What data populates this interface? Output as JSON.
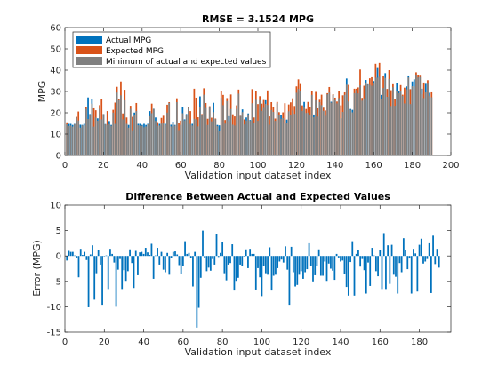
{
  "colors": {
    "actual": "#0072BD",
    "expected": "#D95319",
    "minimum": "#808080",
    "error": "#0072BD"
  },
  "chart_data": [
    {
      "type": "bar",
      "title": "RMSE = 3.1524 MPG",
      "xlabel": "Validation input dataset index",
      "ylabel": "MPG",
      "xlim": [
        0,
        200
      ],
      "ylim": [
        0,
        60
      ],
      "xticks": [
        "0",
        "20",
        "40",
        "60",
        "80",
        "100",
        "120",
        "140",
        "160",
        "180",
        "200"
      ],
      "yticks": [
        "0",
        "10",
        "20",
        "30",
        "40",
        "50",
        "60"
      ],
      "legend": {
        "position": "top-left",
        "entries": [
          "Actual MPG",
          "Expected MPG",
          "Minimum of actual and expected values"
        ]
      },
      "series": [
        {
          "name": "Actual MPG",
          "values": [
            14.6,
            14.8,
            14.8,
            14.3,
            14.8,
            17.8,
            16.4,
            14.4,
            14.3,
            14.8,
            21.9,
            27.2,
            19.4,
            26.4,
            13.5,
            17.8,
            17.4,
            21.9,
            16.9,
            19.4,
            14.7,
            14.3,
            16.1,
            14.3,
            20.1,
            14.8,
            29.5,
            25.9,
            28.2,
            16.9,
            25.9,
            14.8,
            14.3,
            21.9,
            11.8,
            20.1,
            20.8,
            14.8,
            14.8,
            14.3,
            14.8,
            14.3,
            14.8,
            20.8,
            19.8,
            21.9,
            17.8,
            13.9,
            14.8,
            14.9,
            15.4,
            14.8,
            20.1,
            24.6,
            14.4,
            15.8,
            14.3,
            25.0,
            11.9,
            14.3,
            22.7,
            16.9,
            19.4,
            22.4,
            14.8,
            14.8,
            17.2,
            16.9,
            13.6,
            27.7,
            19.0,
            28.5,
            22.3,
            14.3,
            22.5,
            16.0,
            24.7,
            17.1,
            14.3,
            14.1,
            27.0,
            23.6,
            14.9,
            25.5,
            18.4,
            21.8,
            14.4,
            14.0,
            21.8,
            29.0,
            18.5,
            21.6,
            14.5,
            17.8,
            19.7,
            16.6,
            24.5,
            15.4,
            26.1,
            16.2,
            25.9,
            20.9,
            22.3,
            25.9,
            23.7,
            14.4,
            21.3,
            20.4,
            16.2,
            24.4,
            19.0,
            19.1,
            17.5,
            14.9,
            16.8,
            20.7,
            18.9,
            21.1,
            19.5,
            29.4,
            31.2,
            30.3,
            20.9,
            25.1,
            19.9,
            20.1,
            19.0,
            28.4,
            19.2,
            25.9,
            18.2,
            25.0,
            23.6,
            20.9,
            18.6,
            28.7,
            29.5,
            25.2,
            28.4,
            26.0,
            24.4,
            26.9,
            17.4,
            20.4,
            28.4,
            36.1,
            25.3,
            21.8,
            21.4,
            29.2,
            30.7,
            29.1,
            32.9,
            25.7,
            26.8,
            35.4,
            33.4,
            33.2,
            32.7,
            34.9,
            36.5,
            41.0,
            36.9,
            28.4,
            31.6,
            38.6,
            27.5,
            35.9,
            23.2,
            32.0,
            23.3,
            33.8,
            30.4,
            30.4,
            28.0,
            24.4,
            32.4,
            37.1,
            24.1,
            34.7,
            35.7,
            37.5,
            36.6,
            36.8,
            31.3,
            26.9,
            33.6,
            33.7,
            29.4,
            27.3
          ],
          "max": [
            15.5,
            14.8,
            14.8,
            14.3,
            14.8,
            18.1,
            20.6,
            14.4,
            14.3,
            14.8,
            22.7,
            27.2,
            19.4,
            26.4,
            22.1,
            21.2,
            17.4,
            23.6,
            26.5,
            19.4,
            14.7,
            20.8,
            16.1,
            14.3,
            21.4,
            24.8,
            32.2,
            26.5,
            34.7,
            19.7,
            30.8,
            17.8,
            14.3,
            23.3,
            18.1,
            20.1,
            24.6,
            14.8,
            14.8,
            14.3,
            14.8,
            14.3,
            14.8,
            20.8,
            24.3,
            21.9,
            17.8,
            15.6,
            14.8,
            17.6,
            18.6,
            14.8,
            23.8,
            25.0,
            14.4,
            15.8,
            14.3,
            26.8,
            15.4,
            16.3,
            22.7,
            16.9,
            19.4,
            22.8,
            20.8,
            14.8,
            31.3,
            27.1,
            17.9,
            27.7,
            19.4,
            31.5,
            24.6,
            17.2,
            23.1,
            17.7,
            24.7,
            17.3,
            14.3,
            14.1,
            30.4,
            28.4,
            16.6,
            26.9,
            18.4,
            28.6,
            19.3,
            18.3,
            23.5,
            30.9,
            18.6,
            21.6,
            16.9,
            17.8,
            19.7,
            16.6,
            31.1,
            17.8,
            30.3,
            24.1,
            27.8,
            24.3,
            26.0,
            25.9,
            30.5,
            18.3,
            25.0,
            22.8,
            17.3,
            25.1,
            20.3,
            19.1,
            20.2,
            24.5,
            16.8,
            23.9,
            24.9,
            26.8,
            23.2,
            32.4,
            35.7,
            33.5,
            23.5,
            25.1,
            21.8,
            25.1,
            22.8,
            30.4,
            19.2,
            29.8,
            22.1,
            26.1,
            28.5,
            22.4,
            21.1,
            29.2,
            32.1,
            25.2,
            28.7,
            27.1,
            25.3,
            30.4,
            23.5,
            28.2,
            29.6,
            36.1,
            33.1,
            21.8,
            21.4,
            31.3,
            31.3,
            31.9,
            40.3,
            27.0,
            32.7,
            35.4,
            33.4,
            36.2,
            36.7,
            34.9,
            43.0,
            41.0,
            43.4,
            28.4,
            37.1,
            38.6,
            31.2,
            40.0,
            30.6,
            33.4,
            26.5,
            33.8,
            30.4,
            33.0,
            28.5,
            31.8,
            32.4,
            37.1,
            31.1,
            34.7,
            35.7,
            39.0,
            37.7,
            37.4,
            31.3,
            34.2,
            33.6,
            35.3,
            29.4,
            29.6
          ]
        },
        {
          "name": "Expected MPG",
          "values": [
            15.5,
            13.8,
            14.0,
            13.5,
            14.7,
            18.1,
            20.6,
            13.0,
            14.1,
            14.0,
            22.7,
            17.1,
            19.1,
            24.3,
            22.1,
            21.2,
            16.3,
            23.6,
            26.5,
            19.4,
            14.6,
            20.8,
            14.7,
            13.9,
            21.4,
            24.8,
            32.2,
            26.5,
            34.7,
            19.7,
            30.8,
            17.8,
            13.0,
            23.3,
            18.1,
            19.1,
            24.6,
            14.1,
            14.0,
            13.9,
            13.2,
            13.6,
            14.6,
            18.4,
            24.3,
            21.8,
            16.2,
            15.6,
            14.0,
            17.6,
            18.6,
            14.2,
            23.8,
            25.0,
            13.6,
            14.9,
            14.0,
            26.8,
            15.4,
            16.3,
            19.8,
            16.5,
            18.8,
            22.8,
            20.8,
            14.0,
            31.3,
            27.1,
            17.9,
            22.7,
            19.4,
            31.5,
            24.6,
            17.2,
            23.1,
            17.7,
            20.3,
            17.3,
            13.7,
            11.3,
            30.4,
            28.4,
            16.6,
            26.9,
            16.1,
            28.6,
            19.3,
            18.3,
            23.5,
            30.9,
            18.6,
            20.3,
            16.9,
            16.4,
            19.3,
            16.2,
            31.1,
            17.8,
            30.3,
            24.1,
            27.8,
            24.3,
            26.0,
            24.2,
            30.5,
            18.3,
            25.0,
            22.8,
            17.3,
            25.1,
            20.3,
            17.2,
            20.2,
            24.5,
            15.0,
            23.9,
            24.9,
            26.8,
            23.2,
            32.4,
            35.7,
            33.5,
            23.5,
            22.6,
            21.8,
            25.1,
            22.8,
            30.4,
            17.9,
            29.8,
            22.1,
            26.1,
            28.5,
            22.4,
            21.1,
            29.2,
            32.1,
            24.8,
            28.7,
            27.1,
            25.3,
            30.4,
            23.5,
            28.2,
            29.6,
            33.2,
            33.1,
            21.4,
            20.2,
            31.3,
            31.3,
            31.9,
            40.3,
            27.0,
            32.7,
            33.8,
            33.3,
            36.2,
            36.7,
            33.8,
            43.0,
            36.5,
            43.4,
            26.3,
            37.1,
            36.4,
            31.2,
            40.0,
            30.6,
            33.4,
            26.5,
            30.3,
            29.2,
            33.0,
            28.5,
            31.8,
            31.0,
            36.6,
            31.1,
            32.5,
            32.3,
            39.0,
            37.7,
            37.4,
            28.8,
            34.2,
            29.6,
            35.3,
            28.0,
            29.6
          ]
        }
      ]
    },
    {
      "type": "bar",
      "title": "Difference Between Actual and Expected Values",
      "xlabel": "Validation input dataset index",
      "ylabel": "Error (MPG)",
      "xlim": [
        0,
        196
      ],
      "ylim": [
        -15,
        10
      ],
      "xticks": [
        "0",
        "20",
        "40",
        "60",
        "80",
        "100",
        "120",
        "140",
        "160",
        "180"
      ],
      "yticks": [
        "-15",
        "-10",
        "-5",
        "0",
        "5",
        "10"
      ],
      "series": [
        {
          "name": "Error",
          "values": [
            -0.9,
            1.0,
            0.8,
            0.8,
            0.1,
            -0.3,
            -4.2,
            1.4,
            0.2,
            0.8,
            -0.8,
            -10.1,
            0.3,
            2.1,
            -8.6,
            -3.4,
            1.1,
            -1.7,
            -9.6,
            0.0,
            0.1,
            -6.5,
            1.4,
            0.4,
            -1.3,
            -10.0,
            -2.7,
            -0.6,
            -6.5,
            -2.8,
            -4.9,
            -3.0,
            1.3,
            -1.4,
            -6.3,
            1.0,
            -3.8,
            0.7,
            0.8,
            0.4,
            1.6,
            0.7,
            0.2,
            2.4,
            -4.5,
            0.1,
            1.6,
            -1.7,
            0.8,
            -2.7,
            -3.2,
            0.6,
            -3.7,
            -0.4,
            0.8,
            0.9,
            0.3,
            -1.8,
            -3.5,
            -2.0,
            2.9,
            0.4,
            0.6,
            -0.4,
            -6.0,
            0.8,
            -14.1,
            -10.2,
            -4.3,
            5.0,
            -0.4,
            -3.0,
            -2.3,
            -2.9,
            -0.6,
            -1.7,
            4.4,
            -0.2,
            0.6,
            2.8,
            -3.4,
            -4.8,
            -1.7,
            -1.4,
            2.3,
            -6.8,
            -4.9,
            -4.3,
            -1.7,
            -1.9,
            -0.1,
            1.3,
            -2.4,
            1.4,
            0.4,
            0.4,
            -6.6,
            -2.4,
            -4.2,
            -7.9,
            -1.9,
            -3.4,
            -3.7,
            1.7,
            -6.8,
            -3.9,
            -3.7,
            -2.4,
            -1.1,
            -0.7,
            -1.3,
            1.9,
            -2.7,
            -9.6,
            1.8,
            -3.2,
            -6.0,
            -5.7,
            -3.7,
            -3.0,
            -4.5,
            -3.2,
            -2.6,
            2.5,
            -1.9,
            -5.0,
            -3.8,
            -2.0,
            1.3,
            -3.9,
            -3.9,
            -1.1,
            -4.9,
            -1.5,
            -2.5,
            -2.9,
            -4.7,
            0.4,
            -0.3,
            -1.1,
            -0.9,
            -3.5,
            -6.1,
            -7.8,
            -1.2,
            2.9,
            -7.8,
            0.4,
            1.2,
            -2.1,
            -0.6,
            -2.8,
            -7.4,
            -1.3,
            -5.9,
            1.6,
            0.1,
            -3.0,
            -4.0,
            1.1,
            -6.5,
            4.5,
            -6.5,
            2.1,
            -5.5,
            2.2,
            -3.7,
            -4.1,
            -7.4,
            -1.4,
            -3.2,
            3.5,
            1.2,
            -2.6,
            -0.5,
            -7.4,
            1.4,
            0.5,
            -7.0,
            2.2,
            3.4,
            -1.5,
            -1.1,
            -0.6,
            2.5,
            -7.3,
            4.0,
            -1.6,
            1.4,
            -2.3
          ]
        }
      ]
    }
  ]
}
